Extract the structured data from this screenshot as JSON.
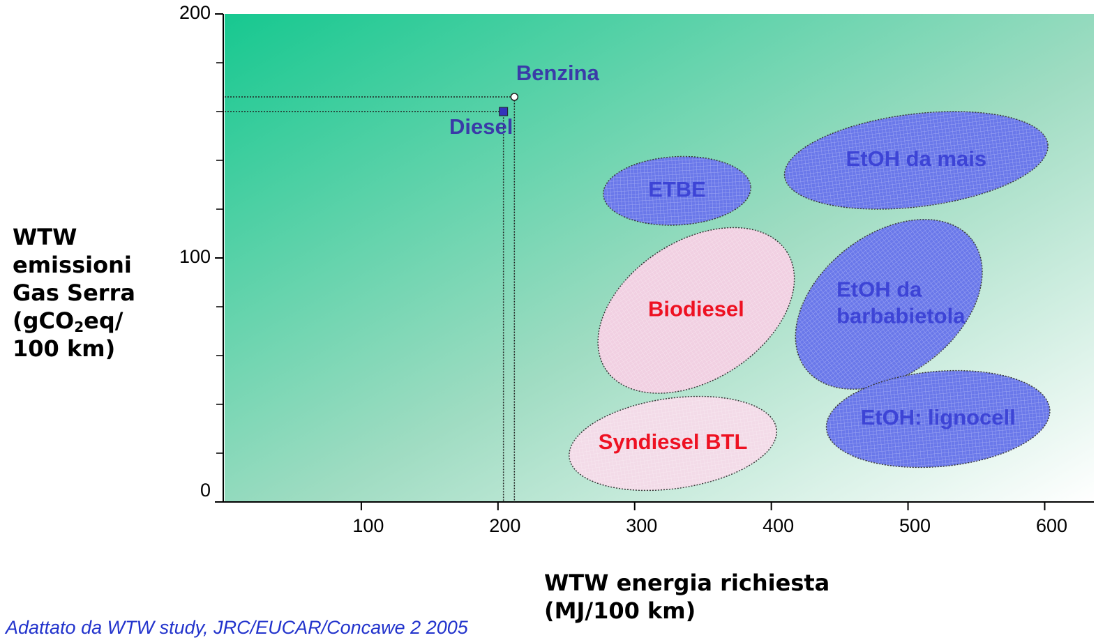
{
  "chart_data": {
    "type": "scatter",
    "ylabel_lines": [
      "WTW",
      "emissioni",
      "Gas Serra",
      [
        "(gCO",
        "2",
        "eq/"
      ],
      "100 km)"
    ],
    "xlabel_lines": [
      "WTW energia richiesta",
      "(MJ/100 km)"
    ],
    "source": "Adattato da WTW study, JRC/EUCAR/Concawe 2 2005",
    "xlim": [
      0,
      636
    ],
    "ylim": [
      0,
      200
    ],
    "xticks": [
      100,
      200,
      300,
      400,
      500,
      600
    ],
    "yticks": [
      0,
      100,
      200
    ],
    "yminorticks": [
      20,
      40,
      60,
      80,
      120,
      140,
      160,
      180
    ],
    "points": [
      {
        "name": "Benzina",
        "x": 212,
        "y": 166,
        "color": "#ffffff",
        "marker": "circle"
      },
      {
        "name": "Diesel",
        "x": 204,
        "y": 160,
        "color": "#3333bb",
        "marker": "square"
      }
    ],
    "regions": [
      {
        "label_lines": [
          "ETBE"
        ],
        "cx": 331,
        "cy": 127.5,
        "rx": 54,
        "ry": 14,
        "angle": -3,
        "color": "#6a78ea",
        "text_color": "#3d44d6"
      },
      {
        "label_lines": [
          "EtOH da  mais"
        ],
        "cx": 506,
        "cy": 140,
        "rx": 97,
        "ry": 19,
        "angle": -7,
        "color": "#6a78ea",
        "text_color": "#3d44d6"
      },
      {
        "label_lines": [
          "Biodiesel"
        ],
        "cx": 345,
        "cy": 78.5,
        "rx": 79,
        "ry": 28.5,
        "angle": -33,
        "color": "#f1d0e2",
        "text_color": "#ee1122"
      },
      {
        "label_lines": [
          "EtOH da",
          "barbabietola"
        ],
        "cx": 486,
        "cy": 81,
        "rx": 77,
        "ry": 28.5,
        "angle": -38,
        "color": "#6a78ea",
        "text_color": "#3d44d6"
      },
      {
        "label_lines": [
          "EtOH: lignocell"
        ],
        "cx": 522,
        "cy": 34,
        "rx": 82,
        "ry": 19.5,
        "angle": -5,
        "color": "#6a78ea",
        "text_color": "#3d44d6"
      },
      {
        "label_lines": [
          "Syndiesel BTL"
        ],
        "cx": 328,
        "cy": 24,
        "rx": 76.5,
        "ry": 18.5,
        "angle": -8,
        "color": "#f3dbe8",
        "text_color": "#ee1122"
      }
    ]
  }
}
